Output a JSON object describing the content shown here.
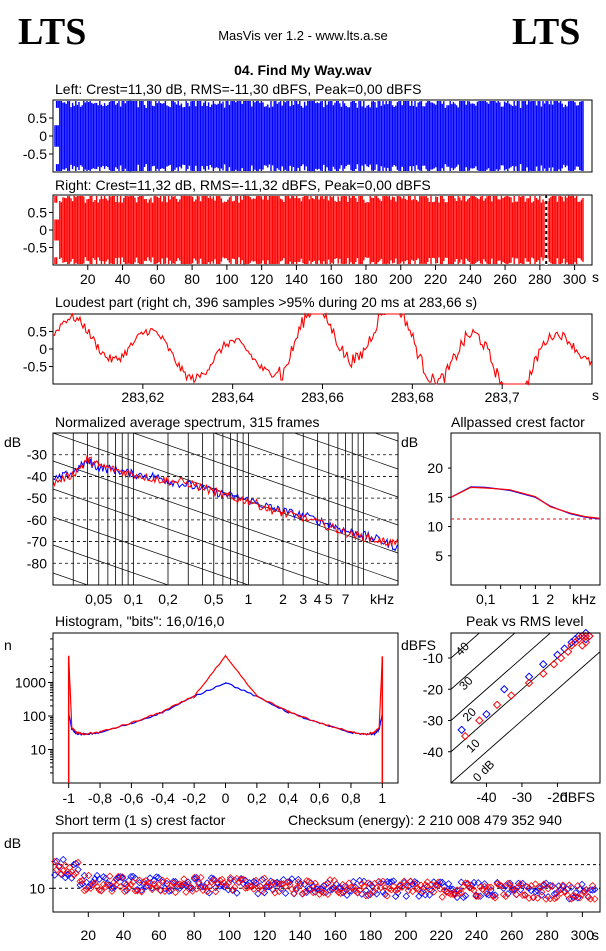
{
  "header": {
    "logo_left": "LTS",
    "logo_right": "LTS",
    "app": "MasVis ver 1.2 - www.lts.a.se",
    "file": "04. Find My Way.wav"
  },
  "colors": {
    "left": "#0000ff",
    "right": "#ff0000",
    "grid": "#000000"
  },
  "chart_data": [
    {
      "id": "left-waveform",
      "type": "area",
      "title": "Left: Crest=11,30 dB, RMS=-11,30 dBFS, Peak=0,00 dBFS",
      "ylim": [
        -1,
        1
      ],
      "yticks": [
        "0.5",
        "0",
        "-0.5"
      ],
      "yvals": [
        0.5,
        0,
        -0.5
      ],
      "xlim": [
        0,
        310
      ],
      "series": [
        {
          "color": "#0000ff",
          "peak": 1.0
        }
      ]
    },
    {
      "id": "right-waveform",
      "type": "area",
      "title": "Right: Crest=11,32 dB, RMS=-11,32 dBFS, Peak=0,00 dBFS",
      "ylim": [
        -1,
        1
      ],
      "yticks": [
        "0.5",
        "0",
        "-0.5"
      ],
      "yvals": [
        0.5,
        0,
        -0.5
      ],
      "xlim": [
        0,
        310
      ],
      "marker_x": 283.66,
      "xticks": [
        "20",
        "40",
        "60",
        "80",
        "100",
        "120",
        "140",
        "160",
        "180",
        "200",
        "220",
        "240",
        "260",
        "280",
        "300"
      ],
      "xtick_vals": [
        20,
        40,
        60,
        80,
        100,
        120,
        140,
        160,
        180,
        200,
        220,
        240,
        260,
        280,
        300
      ],
      "xunit": "s",
      "series": [
        {
          "color": "#ff0000",
          "peak": 1.0
        }
      ]
    },
    {
      "id": "loudest-part",
      "type": "line",
      "title": "Loudest part (right ch, 396 samples >95% during 20 ms at 283,66 s)",
      "ylim": [
        -1,
        1
      ],
      "yticks": [
        "0.5",
        "0",
        "-0.5"
      ],
      "yvals": [
        0.5,
        0,
        -0.5
      ],
      "xlim": [
        283.6,
        283.72
      ],
      "xticks": [
        "283,62",
        "283,64",
        "283,66",
        "283,68",
        "283,7"
      ],
      "xtick_vals": [
        283.62,
        283.64,
        283.66,
        283.68,
        283.7
      ],
      "xunit": "s"
    },
    {
      "id": "spectrum",
      "type": "line",
      "title": "Normalized average spectrum, 315 frames",
      "ylabel": "dB",
      "ylim": [
        -90,
        -20
      ],
      "yticks": [
        "-30",
        "-40",
        "-50",
        "-60",
        "-70",
        "-80"
      ],
      "yvals": [
        -30,
        -40,
        -50,
        -60,
        -70,
        -80
      ],
      "xscale": "log",
      "xlim": [
        0.02,
        20
      ],
      "xunit": "kHz",
      "xticks": [
        "0,05",
        "0,1",
        "0,2",
        "0,5",
        "1",
        "2",
        "3",
        "4",
        "5",
        "7"
      ],
      "xtick_vals": [
        0.05,
        0.1,
        0.2,
        0.5,
        1,
        2,
        3,
        4,
        5,
        7
      ],
      "series": [
        {
          "name": "",
          "color": "#0000ff",
          "x": [
            0.02,
            0.03,
            0.04,
            0.05,
            0.07,
            0.1,
            0.15,
            0.2,
            0.3,
            0.5,
            0.7,
            1,
            1.5,
            2,
            3,
            5,
            7,
            10,
            15,
            20
          ],
          "y": [
            -42,
            -38,
            -33,
            -36,
            -37,
            -39,
            -40,
            -42,
            -44,
            -47,
            -49,
            -51,
            -54,
            -56,
            -58,
            -62,
            -65,
            -67,
            -70,
            -73
          ]
        },
        {
          "name": "",
          "color": "#ff0000",
          "x": [
            0.02,
            0.03,
            0.04,
            0.05,
            0.07,
            0.1,
            0.15,
            0.2,
            0.3,
            0.5,
            0.7,
            1,
            1.5,
            2,
            3,
            5,
            7,
            10,
            15,
            20
          ],
          "y": [
            -43,
            -39,
            -32,
            -35,
            -37,
            -39,
            -41,
            -42,
            -43,
            -47,
            -50,
            -51,
            -55,
            -57,
            -59,
            -63,
            -66,
            -68,
            -70,
            -71
          ]
        }
      ]
    },
    {
      "id": "allpassed-crest",
      "type": "line",
      "title": "Allpassed crest factor",
      "ylabel": "dB",
      "ylim": [
        0,
        26
      ],
      "yticks": [
        "20",
        "15",
        "10",
        "5"
      ],
      "yvals": [
        20,
        15,
        10,
        5
      ],
      "xscale": "log",
      "xlim": [
        0.02,
        20
      ],
      "xunit": "kHz",
      "xticks": [
        "0,1",
        "1",
        "2"
      ],
      "xtick_vals": [
        0.1,
        1,
        2
      ],
      "reference": 11.3,
      "series": [
        {
          "name": "",
          "color": "#0000ff",
          "x": [
            0.02,
            0.05,
            0.1,
            0.3,
            1,
            2,
            5,
            10,
            20
          ],
          "y": [
            15,
            16.8,
            16.7,
            16.2,
            15,
            13.5,
            12.2,
            11.6,
            11.3
          ]
        },
        {
          "name": "",
          "color": "#ff0000",
          "x": [
            0.02,
            0.05,
            0.1,
            0.3,
            1,
            2,
            5,
            10,
            20
          ],
          "y": [
            15,
            16.7,
            16.6,
            16.3,
            15.1,
            13.4,
            12.3,
            11.7,
            11.4
          ]
        }
      ]
    },
    {
      "id": "histogram",
      "type": "line",
      "title": "Histogram, \"bits\": 16,0/16,0",
      "ylabel": "n",
      "yscale": "log",
      "ylim": [
        1,
        30000
      ],
      "yticks": [
        "1000",
        "100",
        "10"
      ],
      "yvals": [
        1000,
        100,
        10
      ],
      "xlim": [
        -1.1,
        1.1
      ],
      "xticks": [
        "-1",
        "-0,8",
        "-0,6",
        "-0,4",
        "-0,2",
        "0",
        "0,2",
        "0,4",
        "0,6",
        "0,8",
        "1"
      ],
      "xtick_vals": [
        -1,
        -0.8,
        -0.6,
        -0.4,
        -0.2,
        0,
        0.2,
        0.4,
        0.6,
        0.8,
        1
      ],
      "series": [
        {
          "name": "",
          "color": "#0000ff",
          "x": [
            -1,
            -0.98,
            -0.95,
            -0.9,
            -0.8,
            -0.6,
            -0.4,
            -0.2,
            0,
            0.2,
            0.4,
            0.6,
            0.8,
            0.9,
            0.95,
            0.98,
            1
          ],
          "y": [
            120,
            40,
            30,
            28,
            32,
            60,
            130,
            380,
            1000,
            380,
            130,
            60,
            32,
            28,
            30,
            40,
            120
          ]
        },
        {
          "name": "",
          "color": "#ff0000",
          "x": [
            -1,
            -0.98,
            -0.95,
            -0.9,
            -0.8,
            -0.6,
            -0.4,
            -0.2,
            0,
            0.2,
            0.4,
            0.6,
            0.8,
            0.9,
            0.95,
            0.98,
            1
          ],
          "y": [
            6000,
            45,
            32,
            29,
            33,
            62,
            135,
            390,
            6000,
            390,
            135,
            62,
            33,
            29,
            32,
            45,
            6000
          ]
        }
      ]
    },
    {
      "id": "peak-vs-rms",
      "type": "scatter",
      "title": "Peak vs RMS level",
      "ylabel": "dBFS",
      "xunit": "dBFS",
      "xlim": [
        -50,
        -8
      ],
      "ylim": [
        -50,
        -2
      ],
      "yticks": [
        "-10",
        "-20",
        "-30",
        "-40"
      ],
      "yvals": [
        -10,
        -20,
        -30,
        -40
      ],
      "xticks": [
        "-40",
        "-30",
        "-20"
      ],
      "xtick_vals": [
        -40,
        -30,
        -20
      ],
      "diag_labels": [
        "40",
        "30",
        "20",
        "10",
        "0 dB"
      ],
      "series": [
        {
          "name": "",
          "color": "#0000ff",
          "x": [
            -47,
            -40,
            -35,
            -28,
            -24,
            -20,
            -18,
            -16,
            -15,
            -14,
            -13,
            -12,
            -12,
            -11
          ],
          "y": [
            -33,
            -28,
            -20,
            -16,
            -12,
            -9,
            -7,
            -5,
            -4,
            -3,
            -3,
            -2,
            -4,
            -3
          ]
        },
        {
          "name": "",
          "color": "#ff0000",
          "x": [
            -46,
            -42,
            -37,
            -33,
            -28,
            -24,
            -21,
            -19,
            -17,
            -16,
            -15,
            -14,
            -13,
            -12,
            -11,
            -12,
            -13
          ],
          "y": [
            -35,
            -30,
            -25,
            -22,
            -18,
            -15,
            -12,
            -10,
            -8,
            -6,
            -5,
            -4,
            -3,
            -3,
            -3,
            -5,
            -6
          ]
        }
      ]
    },
    {
      "id": "short-term-crest",
      "type": "scatter",
      "title": "Short term (1 s) crest factor",
      "checksum": "Checksum (energy):  2 210 008 479 352 940",
      "ylabel": "dB",
      "ylim": [
        4,
        24
      ],
      "yticks": [
        "10"
      ],
      "yvals": [
        10
      ],
      "dashed": [
        10,
        16
      ],
      "xlim": [
        0,
        310
      ],
      "xticks": [
        "20",
        "40",
        "60",
        "80",
        "100",
        "120",
        "140",
        "160",
        "180",
        "200",
        "220",
        "240",
        "260",
        "280",
        "300"
      ],
      "xtick_vals": [
        20,
        40,
        60,
        80,
        100,
        120,
        140,
        160,
        180,
        200,
        220,
        240,
        260,
        280,
        300
      ],
      "xunit": "s"
    }
  ]
}
